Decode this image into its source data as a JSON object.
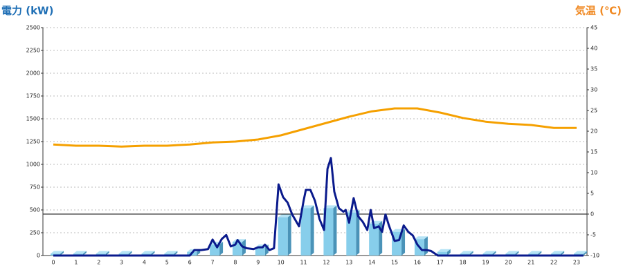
{
  "chart_data": {
    "type": "bar-line",
    "y_title": "電力 (kW)",
    "y2_title": "気温 (℃)",
    "categories": [
      "0",
      "1",
      "2",
      "3",
      "4",
      "5",
      "6",
      "7",
      "8",
      "9",
      "10",
      "11",
      "12",
      "13",
      "14",
      "15",
      "16",
      "17",
      "18",
      "19",
      "20",
      "21",
      "22",
      "23"
    ],
    "ylim": [
      0,
      2500
    ],
    "yticks": [
      0,
      250,
      500,
      750,
      1000,
      1250,
      1500,
      1750,
      2000,
      2250,
      2500
    ],
    "y2lim": [
      -10,
      45
    ],
    "y2ticks": [
      -10,
      -5,
      0,
      5,
      10,
      15,
      20,
      25,
      30,
      35,
      40,
      45
    ],
    "grid": true,
    "series": [
      {
        "type": "bar",
        "color": "#87ceeb",
        "values": [
          20,
          20,
          20,
          20,
          20,
          20,
          40,
          120,
          150,
          90,
          420,
          520,
          520,
          470,
          350,
          260,
          180,
          40,
          20,
          20,
          20,
          20,
          20,
          20
        ]
      },
      {
        "type": "line",
        "color": "#0a1a8c",
        "x": [
          0,
          6,
          6.2,
          6.5,
          6.8,
          7,
          7.2,
          7.4,
          7.6,
          7.8,
          8,
          8.1,
          8.3,
          8.5,
          8.8,
          9,
          9.2,
          9.3,
          9.5,
          9.7,
          9.9,
          10.1,
          10.3,
          10.5,
          10.8,
          11,
          11.1,
          11.3,
          11.5,
          11.7,
          11.9,
          12.05,
          12.2,
          12.35,
          12.55,
          12.75,
          12.85,
          13,
          13.2,
          13.4,
          13.6,
          13.8,
          13.95,
          14.1,
          14.3,
          14.45,
          14.6,
          14.75,
          15,
          15.2,
          15.4,
          15.6,
          15.8,
          16,
          16.2,
          16.4,
          16.6,
          16.9,
          23.3
        ],
        "values": [
          0,
          0,
          60,
          60,
          70,
          175,
          90,
          180,
          225,
          100,
          120,
          170,
          100,
          80,
          70,
          90,
          90,
          120,
          60,
          80,
          780,
          640,
          580,
          450,
          320,
          600,
          720,
          720,
          600,
          400,
          280,
          950,
          1070,
          700,
          520,
          480,
          500,
          360,
          630,
          430,
          370,
          280,
          500,
          300,
          320,
          260,
          450,
          330,
          160,
          170,
          330,
          260,
          220,
          120,
          60,
          60,
          50,
          0,
          0
        ]
      },
      {
        "type": "line",
        "axis": "y2",
        "color": "#f5a000",
        "values": [
          16.8,
          16.5,
          16.5,
          16.3,
          16.5,
          16.5,
          16.8,
          17.3,
          17.5,
          18,
          19,
          20.5,
          22,
          23.5,
          24.8,
          25.5,
          25.5,
          24.5,
          23.2,
          22.3,
          21.8,
          21.5,
          20.8,
          20.8
        ]
      }
    ]
  }
}
